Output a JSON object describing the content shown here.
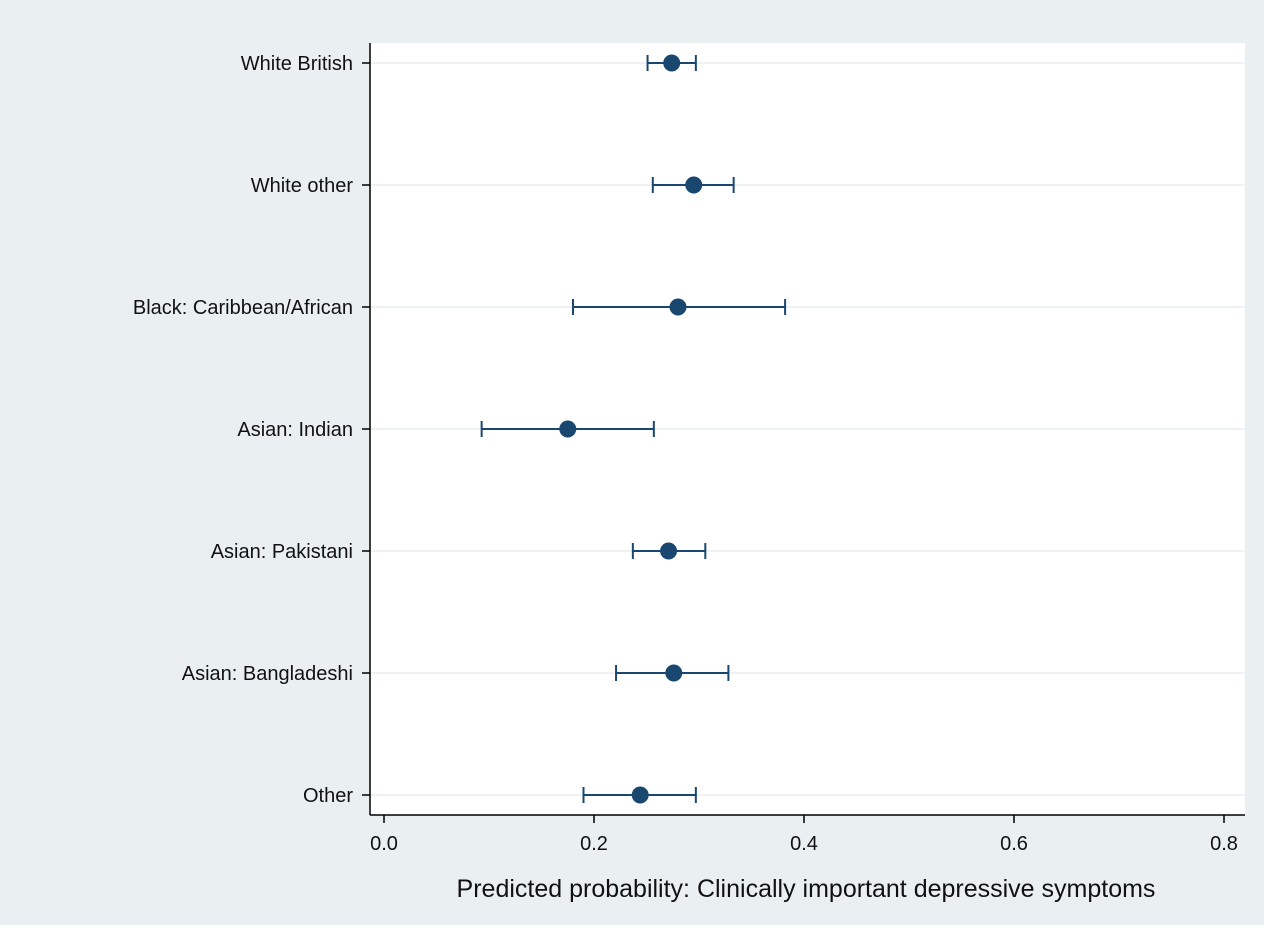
{
  "colors": {
    "outer_background": "#eaf0f2",
    "plot_background": "#ffffff",
    "gridline": "#e8eef1",
    "axis": "#000000",
    "marker": "#1a476f"
  },
  "chart_data": {
    "type": "scatter",
    "orientation": "horizontal",
    "style": "point estimates with confidence interval error bars",
    "title": "",
    "xlabel": "Predicted probability: Clinically important depressive symptoms",
    "ylabel": "",
    "xlim": [
      0.0,
      0.8
    ],
    "x_ticks": [
      0.0,
      0.2,
      0.4,
      0.6,
      0.8
    ],
    "x_tick_labels": [
      "0.0",
      "0.2",
      "0.4",
      "0.6",
      "0.8"
    ],
    "grid": "horizontal gridlines at each category",
    "legend": "none",
    "categories": [
      "White British",
      "White other",
      "Black: Caribbean/African",
      "Asian: Indian",
      "Asian: Pakistani",
      "Asian: Bangladeshi",
      "Other"
    ],
    "values": [
      0.274,
      0.295,
      0.28,
      0.175,
      0.271,
      0.276,
      0.244
    ],
    "ci_lower": [
      0.251,
      0.256,
      0.18,
      0.093,
      0.237,
      0.221,
      0.19
    ],
    "ci_upper": [
      0.297,
      0.333,
      0.382,
      0.257,
      0.306,
      0.328,
      0.297
    ]
  }
}
